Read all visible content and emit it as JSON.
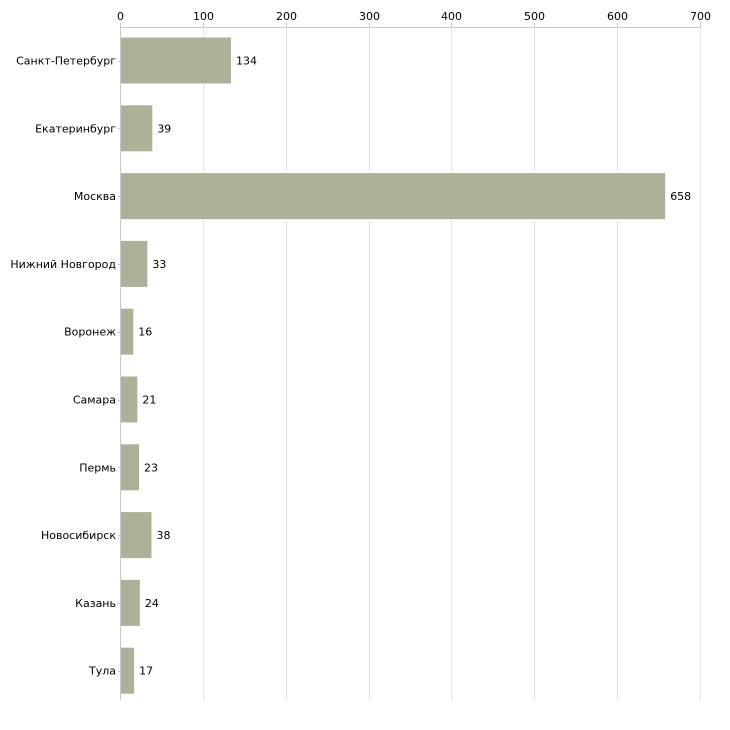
{
  "chart_data": {
    "type": "bar",
    "orientation": "horizontal",
    "title": "",
    "xlabel": "",
    "ylabel": "",
    "categories": [
      "Санкт-Петербург",
      "Екатеринбург",
      "Москва",
      "Нижний Новгород",
      "Воронеж",
      "Самара",
      "Пермь",
      "Новосибирск",
      "Казань",
      "Тула"
    ],
    "values": [
      134,
      39,
      658,
      33,
      16,
      21,
      23,
      38,
      24,
      17
    ],
    "xlim": [
      0,
      700
    ],
    "xticks": [
      0,
      100,
      200,
      300,
      400,
      500,
      600,
      700
    ],
    "grid": true,
    "legend": "none",
    "bar_color": "#acb198",
    "data_labels": true
  }
}
